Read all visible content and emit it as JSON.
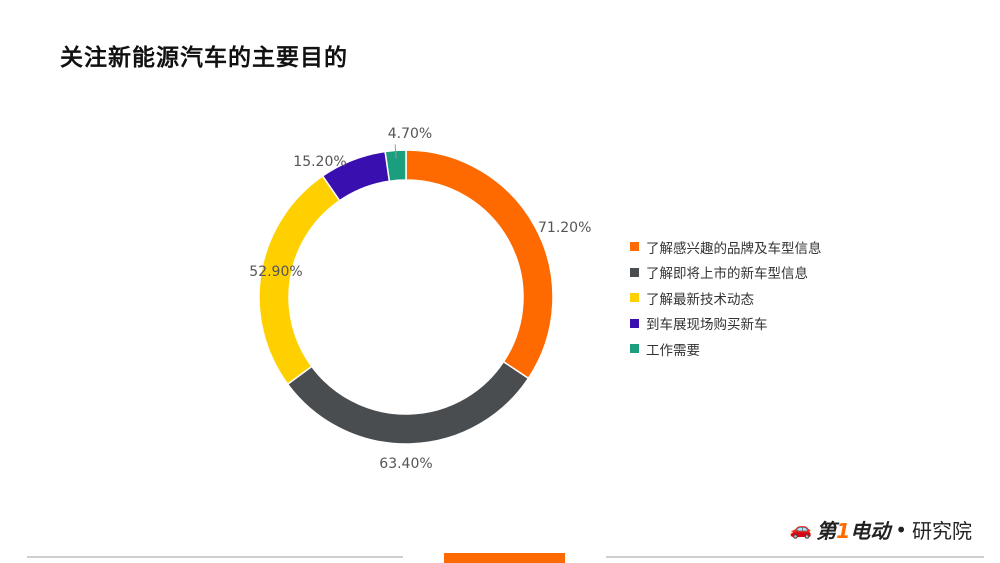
{
  "title": "关注新能源汽车的主要目的",
  "chart_data": {
    "type": "pie",
    "variant": "donut",
    "slices": [
      {
        "label": "了解感兴趣的品牌及车型信息",
        "value": 71.2,
        "display": "71.20%",
        "color": "#ff6a00"
      },
      {
        "label": "了解即将上市的新车型信息",
        "value": 63.4,
        "display": "63.40%",
        "color": "#4a4d4f"
      },
      {
        "label": "了解最新技术动态",
        "value": 52.9,
        "display": "52.90%",
        "color": "#ffd000"
      },
      {
        "label": "到车展现场购买新车",
        "value": 15.2,
        "display": "15.20%",
        "color": "#3a0fb0"
      },
      {
        "label": "工作需要",
        "value": 4.7,
        "display": "4.70%",
        "color": "#1a9e7e"
      }
    ],
    "legend_position": "right"
  },
  "brand": {
    "logo_first": "第",
    "logo_one": "1",
    "logo_rest": "电动",
    "dot": "•",
    "suffix": "研究院"
  },
  "brand_icon": "car-icon"
}
